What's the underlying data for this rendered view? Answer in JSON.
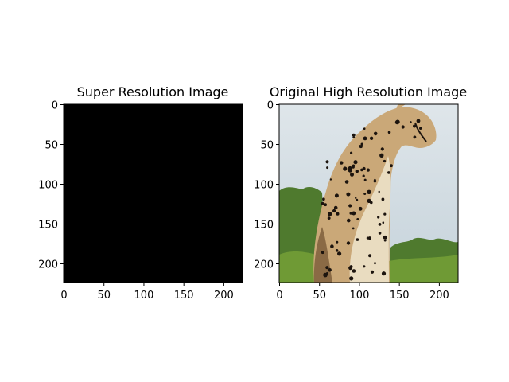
{
  "figure": {
    "background": "#ffffff"
  },
  "chart_data": [
    {
      "type": "image",
      "title": "Super Resolution Image",
      "content": "solid black image",
      "fill": "#000000",
      "xlim": [
        0,
        224
      ],
      "ylim": [
        224,
        0
      ],
      "xticks": [
        0,
        50,
        100,
        150,
        200
      ],
      "yticks": [
        0,
        50,
        100,
        150,
        200
      ],
      "grid": false
    },
    {
      "type": "image",
      "title": "Original High Resolution Image",
      "content": "photo of a cheetah",
      "xlim": [
        0,
        224
      ],
      "ylim": [
        224,
        0
      ],
      "xticks": [
        0,
        50,
        100,
        150,
        200
      ],
      "yticks": [
        0,
        50,
        100,
        150,
        200
      ],
      "grid": false,
      "palette": {
        "sky": "#dfe6ea",
        "sky_low": "#c6d3db",
        "trees": "#4f7a2e",
        "grass": "#6f9a35",
        "fur": "#caa878",
        "fur_light": "#e9dcc0",
        "spots": "#1c140e",
        "shadow": "#8a6a45"
      }
    }
  ]
}
